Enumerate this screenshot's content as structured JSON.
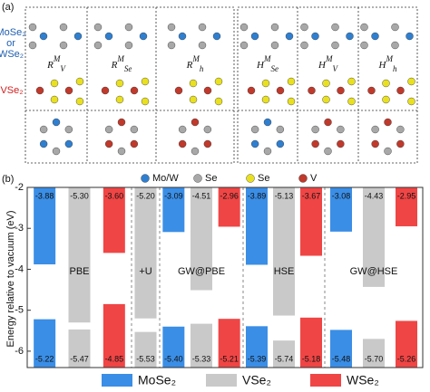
{
  "panel_a": {
    "label": "(a)",
    "row_labels": [
      "MoSe₂",
      "or",
      "WSe₂",
      "VSe₂"
    ],
    "structures": [
      {
        "base": "R",
        "sub": "V",
        "sup": "M"
      },
      {
        "base": "R",
        "sub": "Se",
        "sup": "M"
      },
      {
        "base": "R",
        "sub": "h",
        "sup": "M"
      },
      {
        "base": "H",
        "sub": "Se",
        "sup": "M"
      },
      {
        "base": "H",
        "sub": "V",
        "sup": "M"
      },
      {
        "base": "H",
        "sub": "h",
        "sup": "M"
      }
    ],
    "legend": [
      {
        "name": "Mo/W",
        "color": "#2f7fd0"
      },
      {
        "name": "Se",
        "color": "#a8a8a8"
      },
      {
        "name": "Se",
        "color": "#e8e020"
      },
      {
        "name": "V",
        "color": "#c0392b"
      }
    ]
  },
  "chart_data": {
    "type": "bar",
    "label": "(b)",
    "ylabel": "Energy relative to vacuum (eV)",
    "categories": [
      "PBE",
      "+U",
      "GW@PBE",
      "HSE",
      "GW@HSE"
    ],
    "ylim": [
      -6.4,
      -2
    ],
    "yticks": [
      -6,
      -5,
      -4,
      -3,
      -2
    ],
    "series": [
      {
        "name": "MoSe₂",
        "color": "#3a8ee6",
        "cbm": [
          -3.88,
          null,
          -3.09,
          -3.89,
          -3.08
        ],
        "cbm_labels": [
          "-3.88",
          null,
          "-3.09",
          "-3.89",
          "-3.08"
        ],
        "vbm": [
          -5.22,
          null,
          -5.4,
          -5.39,
          -5.48
        ],
        "vbm_labels": [
          "-5.22",
          null,
          "-5.40",
          "-5.39",
          "-5.48"
        ]
      },
      {
        "name": "VSe₂",
        "color": "#c9c9c9",
        "cbm": [
          -5.3,
          -5.2,
          -4.51,
          -5.13,
          -4.43
        ],
        "cbm_labels": [
          "-5.30",
          "-5.20",
          "-4.51",
          "-5.13",
          "-4.43"
        ],
        "vbm": [
          -5.47,
          -5.53,
          -5.33,
          -5.74,
          -5.7
        ],
        "vbm_labels": [
          "-5.47",
          "-5.53",
          "-5.33",
          "-5.74",
          "-5.70"
        ]
      },
      {
        "name": "WSe₂",
        "color": "#f04545",
        "cbm": [
          -3.6,
          null,
          -2.96,
          -3.67,
          -2.95
        ],
        "cbm_labels": [
          "-3.60",
          null,
          "-2.96",
          "-3.67",
          "-2.95"
        ],
        "vbm": [
          -4.85,
          null,
          -5.21,
          -5.18,
          -5.26
        ],
        "vbm_labels": [
          "-4.85",
          null,
          "-5.21",
          "-5.18",
          "-5.26"
        ]
      }
    ]
  }
}
